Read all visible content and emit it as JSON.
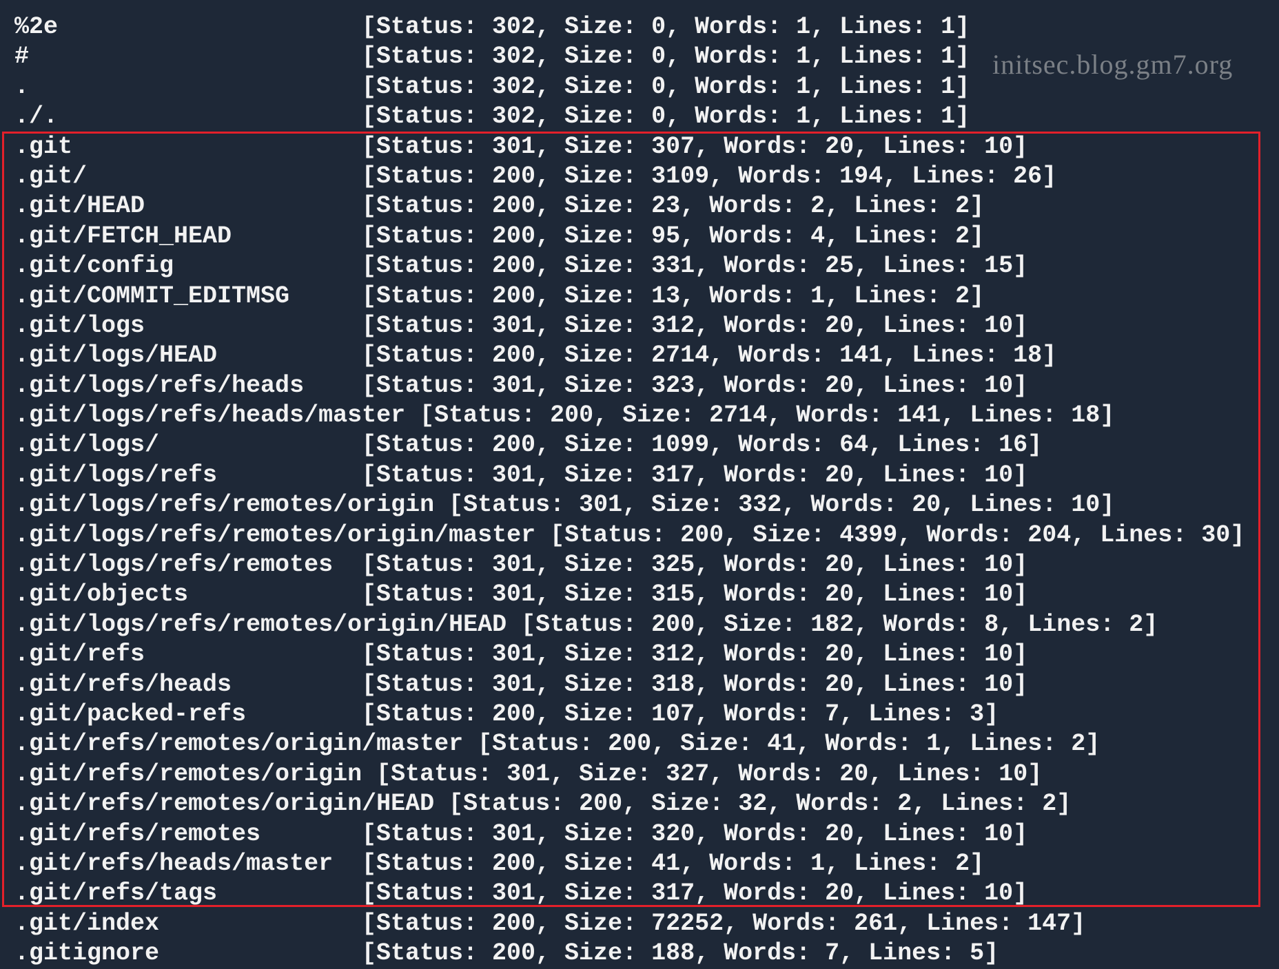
{
  "colors": {
    "background": "#1e2837",
    "text": "#f2f2f2",
    "highlight_box": "#e3202a"
  },
  "rows": [
    {
      "name": "%2e",
      "result": "[Status: 302, Size: 0, Words: 1, Lines: 1]"
    },
    {
      "name": "#",
      "result": "[Status: 302, Size: 0, Words: 1, Lines: 1]"
    },
    {
      "name": ".",
      "result": "[Status: 302, Size: 0, Words: 1, Lines: 1]"
    },
    {
      "name": "./.",
      "result": "[Status: 302, Size: 0, Words: 1, Lines: 1]"
    },
    {
      "name": ".git",
      "result": "[Status: 301, Size: 307, Words: 20, Lines: 10]"
    },
    {
      "name": ".git/",
      "result": "[Status: 200, Size: 3109, Words: 194, Lines: 26]"
    },
    {
      "name": ".git/HEAD",
      "result": "[Status: 200, Size: 23, Words: 2, Lines: 2]"
    },
    {
      "name": ".git/FETCH_HEAD",
      "result": "[Status: 200, Size: 95, Words: 4, Lines: 2]"
    },
    {
      "name": ".git/config",
      "result": "[Status: 200, Size: 331, Words: 25, Lines: 15]"
    },
    {
      "name": ".git/COMMIT_EDITMSG",
      "result": "[Status: 200, Size: 13, Words: 1, Lines: 2]"
    },
    {
      "name": ".git/logs",
      "result": "[Status: 301, Size: 312, Words: 20, Lines: 10]"
    },
    {
      "name": ".git/logs/HEAD",
      "result": "[Status: 200, Size: 2714, Words: 141, Lines: 18]"
    },
    {
      "name": ".git/logs/refs/heads",
      "result": "[Status: 301, Size: 323, Words: 20, Lines: 10]"
    },
    {
      "name": ".git/logs/refs/heads/master",
      "result": "[Status: 200, Size: 2714, Words: 141, Lines: 18]"
    },
    {
      "name": ".git/logs/",
      "result": "[Status: 200, Size: 1099, Words: 64, Lines: 16]"
    },
    {
      "name": ".git/logs/refs",
      "result": "[Status: 301, Size: 317, Words: 20, Lines: 10]"
    },
    {
      "name": ".git/logs/refs/remotes/origin",
      "result": "[Status: 301, Size: 332, Words: 20, Lines: 10]"
    },
    {
      "name": ".git/logs/refs/remotes/origin/master",
      "result": "[Status: 200, Size: 4399, Words: 204, Lines: 30]"
    },
    {
      "name": ".git/logs/refs/remotes",
      "result": "[Status: 301, Size: 325, Words: 20, Lines: 10]"
    },
    {
      "name": ".git/objects",
      "result": "[Status: 301, Size: 315, Words: 20, Lines: 10]"
    },
    {
      "name": ".git/logs/refs/remotes/origin/HEAD",
      "result": "[Status: 200, Size: 182, Words: 8, Lines: 2]"
    },
    {
      "name": ".git/refs",
      "result": "[Status: 301, Size: 312, Words: 20, Lines: 10]"
    },
    {
      "name": ".git/refs/heads",
      "result": "[Status: 301, Size: 318, Words: 20, Lines: 10]"
    },
    {
      "name": ".git/packed-refs",
      "result": "[Status: 200, Size: 107, Words: 7, Lines: 3]"
    },
    {
      "name": ".git/refs/remotes/origin/master",
      "result": "[Status: 200, Size: 41, Words: 1, Lines: 2]"
    },
    {
      "name": ".git/refs/remotes/origin",
      "result": "[Status: 301, Size: 327, Words: 20, Lines: 10]"
    },
    {
      "name": ".git/refs/remotes/origin/HEAD",
      "result": "[Status: 200, Size: 32, Words: 2, Lines: 2]"
    },
    {
      "name": ".git/refs/remotes",
      "result": "[Status: 301, Size: 320, Words: 20, Lines: 10]"
    },
    {
      "name": ".git/refs/heads/master",
      "result": "[Status: 200, Size: 41, Words: 1, Lines: 2]"
    },
    {
      "name": ".git/refs/tags",
      "result": "[Status: 301, Size: 317, Words: 20, Lines: 10]"
    },
    {
      "name": ".git/index",
      "result": "[Status: 200, Size: 72252, Words: 261, Lines: 147]"
    },
    {
      "name": ".gitignore",
      "result": "[Status: 200, Size: 188, Words: 7, Lines: 5]"
    }
  ],
  "watermark": "initsec.blog.gm7.org"
}
